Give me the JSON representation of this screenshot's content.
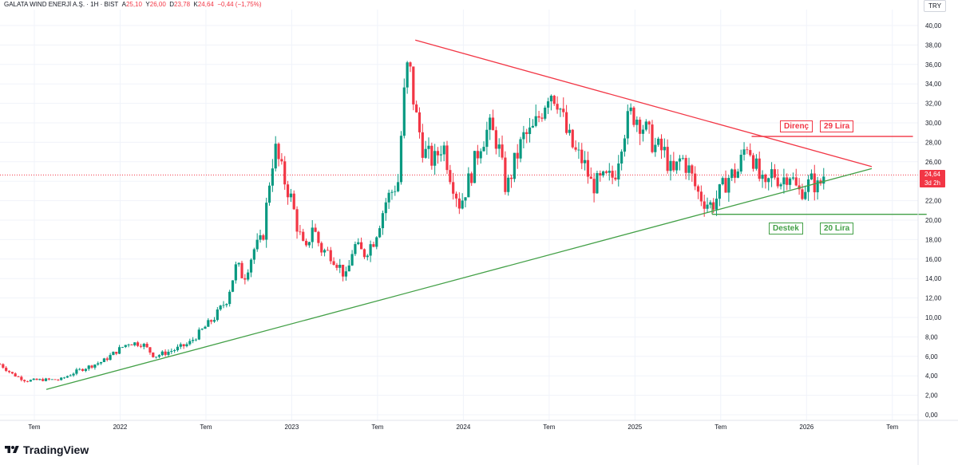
{
  "header": {
    "symbol": "GALATA WIND ENERJİ A.Ş. · 1H · BIST",
    "open_label": "A",
    "open": "25,10",
    "high_label": "Y",
    "high": "26,00",
    "low_label": "D",
    "low": "23,78",
    "close_label": "K",
    "close": "24,64",
    "change": "−0,44 (−1,75%)"
  },
  "currency": "TRY",
  "price_tag": {
    "price": "24,64",
    "countdown": "3d 2h"
  },
  "annotations": {
    "resistance_name": "Direnç",
    "resistance_value": "29 Lira",
    "support_name": "Destek",
    "support_value": "20 Lira"
  },
  "brand": "TradingView",
  "colors": {
    "up": "#089981",
    "down": "#f23645",
    "resistance": "#f23645",
    "support": "#43a047",
    "grid": "#f0f3fa",
    "axis_text": "#131722"
  },
  "chart_data": {
    "type": "candlestick",
    "title": "GALATA WIND ENERJİ A.Ş. · 1H · BIST",
    "xlabel": "",
    "ylabel": "TRY",
    "ylim": [
      0,
      40
    ],
    "xlim": [
      2021.3,
      2026.65
    ],
    "y_ticks": [
      "0,00",
      "2,00",
      "4,00",
      "6,00",
      "8,00",
      "10,00",
      "12,00",
      "14,00",
      "16,00",
      "18,00",
      "20,00",
      "22,00",
      "24,00",
      "26,00",
      "28,00",
      "30,00",
      "32,00",
      "34,00",
      "36,00",
      "38,00",
      "40,00"
    ],
    "x_ticks": [
      {
        "t": 2021.5,
        "label": "Tem"
      },
      {
        "t": 2022.0,
        "label": "2022"
      },
      {
        "t": 2022.5,
        "label": "Tem"
      },
      {
        "t": 2023.0,
        "label": "2023"
      },
      {
        "t": 2023.5,
        "label": "Tem"
      },
      {
        "t": 2024.0,
        "label": "2024"
      },
      {
        "t": 2024.5,
        "label": "Tem"
      },
      {
        "t": 2025.0,
        "label": "2025"
      },
      {
        "t": 2025.5,
        "label": "Tem"
      },
      {
        "t": 2026.0,
        "label": "2026"
      },
      {
        "t": 2026.5,
        "label": "Tem"
      }
    ],
    "price_path": [
      [
        2021.3,
        5.2
      ],
      [
        2021.37,
        4.2
      ],
      [
        2021.45,
        3.5
      ],
      [
        2021.55,
        3.6
      ],
      [
        2021.65,
        3.6
      ],
      [
        2021.75,
        4.5
      ],
      [
        2021.9,
        5.5
      ],
      [
        2022.0,
        6.8
      ],
      [
        2022.05,
        7.4
      ],
      [
        2022.13,
        7.3
      ],
      [
        2022.2,
        6.0
      ],
      [
        2022.32,
        6.7
      ],
      [
        2022.4,
        7.3
      ],
      [
        2022.55,
        10.0
      ],
      [
        2022.62,
        11.8
      ],
      [
        2022.68,
        15.5
      ],
      [
        2022.72,
        14.0
      ],
      [
        2022.78,
        17.0
      ],
      [
        2022.83,
        18.0
      ],
      [
        2022.87,
        24.0
      ],
      [
        2022.9,
        27.5
      ],
      [
        2022.95,
        24.5
      ],
      [
        2023.0,
        22.0
      ],
      [
        2023.03,
        19.5
      ],
      [
        2023.08,
        16.5
      ],
      [
        2023.12,
        19.5
      ],
      [
        2023.17,
        17.0
      ],
      [
        2023.23,
        16.5
      ],
      [
        2023.27,
        15.5
      ],
      [
        2023.32,
        14.0
      ],
      [
        2023.36,
        17.5
      ],
      [
        2023.42,
        16.5
      ],
      [
        2023.48,
        18.0
      ],
      [
        2023.55,
        22.0
      ],
      [
        2023.62,
        24.0
      ],
      [
        2023.65,
        32.0
      ],
      [
        2023.68,
        36.5
      ],
      [
        2023.72,
        31.0
      ],
      [
        2023.77,
        27.0
      ],
      [
        2023.83,
        26.0
      ],
      [
        2023.88,
        28.0
      ],
      [
        2023.92,
        25.0
      ],
      [
        2023.98,
        21.5
      ],
      [
        2024.05,
        25.0
      ],
      [
        2024.1,
        28.0
      ],
      [
        2024.15,
        29.5
      ],
      [
        2024.2,
        28.0
      ],
      [
        2024.25,
        23.0
      ],
      [
        2024.3,
        26.0
      ],
      [
        2024.35,
        28.5
      ],
      [
        2024.4,
        29.0
      ],
      [
        2024.45,
        31.0
      ],
      [
        2024.5,
        33.5
      ],
      [
        2024.55,
        32.5
      ],
      [
        2024.6,
        29.0
      ],
      [
        2024.65,
        27.0
      ],
      [
        2024.7,
        26.0
      ],
      [
        2024.75,
        23.5
      ],
      [
        2024.8,
        24.0
      ],
      [
        2024.88,
        24.5
      ],
      [
        2024.93,
        29.0
      ],
      [
        2024.98,
        31.0
      ],
      [
        2025.02,
        30.5
      ],
      [
        2025.07,
        29.0
      ],
      [
        2025.12,
        27.5
      ],
      [
        2025.17,
        27.0
      ],
      [
        2025.22,
        24.5
      ],
      [
        2025.27,
        26.5
      ],
      [
        2025.32,
        25.0
      ],
      [
        2025.36,
        23.0
      ],
      [
        2025.4,
        22.0
      ],
      [
        2025.45,
        21.5
      ],
      [
        2025.5,
        23.0
      ],
      [
        2025.55,
        24.5
      ],
      [
        2025.6,
        25.0
      ],
      [
        2025.65,
        28.0
      ],
      [
        2025.68,
        27.0
      ],
      [
        2025.72,
        24.5
      ],
      [
        2025.76,
        23.0
      ],
      [
        2025.8,
        25.0
      ],
      [
        2025.85,
        24.0
      ],
      [
        2025.9,
        25.0
      ],
      [
        2025.95,
        22.8
      ],
      [
        2026.0,
        23.5
      ],
      [
        2026.03,
        24.0
      ],
      [
        2026.07,
        23.3
      ],
      [
        2026.1,
        24.64
      ]
    ],
    "drawings": {
      "resistance_trendline": {
        "from": [
          2023.72,
          38.5
        ],
        "to": [
          2026.38,
          25.5
        ]
      },
      "support_trendline": {
        "from": [
          2021.57,
          2.6
        ],
        "to": [
          2026.38,
          25.3
        ]
      },
      "resistance_level": {
        "from": [
          2025.68,
          28.6
        ],
        "to": [
          2026.62,
          28.6
        ],
        "value": 29
      },
      "support_level": {
        "from": [
          2025.45,
          20.6
        ],
        "to": [
          2026.7,
          20.6
        ],
        "value": 20
      },
      "last_price_line": 24.64
    }
  }
}
